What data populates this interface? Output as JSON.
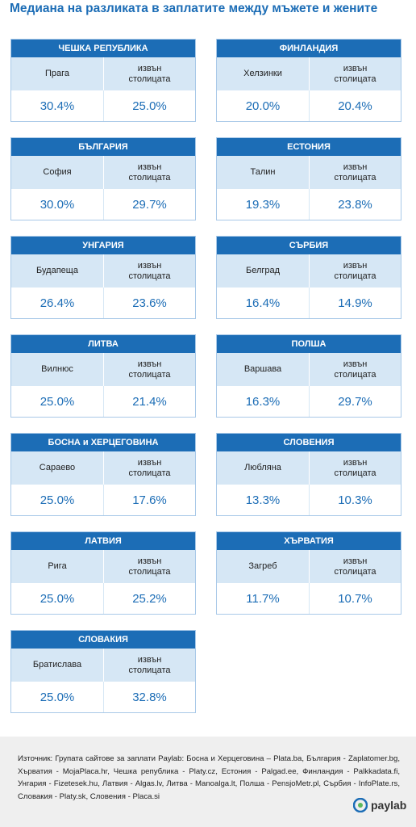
{
  "header": {
    "title": "Медиана на разликата в заплатите между мъжете и жените"
  },
  "cards": [
    {
      "country": "ЧЕШКА РЕПУБЛИКА",
      "capital": "Прага",
      "outside": "извън столицата",
      "capital_value": "30.4%",
      "outside_value": "25.0%"
    },
    {
      "country": "ФИНЛАНДИЯ",
      "capital": "Хелзинки",
      "outside": "извън столицата",
      "capital_value": "20.0%",
      "outside_value": "20.4%"
    },
    {
      "country": "БЪЛГАРИЯ",
      "capital": "София",
      "outside": "извън столицата",
      "capital_value": "30.0%",
      "outside_value": "29.7%"
    },
    {
      "country": "ЕСТОНИЯ",
      "capital": "Талин",
      "outside": "извън столицата",
      "capital_value": "19.3%",
      "outside_value": "23.8%"
    },
    {
      "country": "УНГАРИЯ",
      "capital": "Будапеща",
      "outside": "извън столицата",
      "capital_value": "26.4%",
      "outside_value": "23.6%"
    },
    {
      "country": "СЪРБИЯ",
      "capital": "Белград",
      "outside": "извън столицата",
      "capital_value": "16.4%",
      "outside_value": "14.9%"
    },
    {
      "country": "ЛИТВА",
      "capital": "Вилнюс",
      "outside": "извън столицата",
      "capital_value": "25.0%",
      "outside_value": "21.4%"
    },
    {
      "country": "ПОЛША",
      "capital": "Варшава",
      "outside": "извън столицата",
      "capital_value": "16.3%",
      "outside_value": "29.7%"
    },
    {
      "country": "БОСНА и ХЕРЦЕГОВИНА",
      "capital": "Сараево",
      "outside": "извън столицата",
      "capital_value": "25.0%",
      "outside_value": "17.6%"
    },
    {
      "country": "СЛОВЕНИЯ",
      "capital": "Любляна",
      "outside": "извън столицата",
      "capital_value": "13.3%",
      "outside_value": "10.3%"
    },
    {
      "country": "ЛАТВИЯ",
      "capital": "Рига",
      "outside": "извън столицата",
      "capital_value": "25.0%",
      "outside_value": "25.2%"
    },
    {
      "country": "ХЪРВАТИЯ",
      "capital": "Загреб",
      "outside": "извън столицата",
      "capital_value": "11.7%",
      "outside_value": "10.7%"
    },
    {
      "country": "СЛОВАКИЯ",
      "capital": "Братислава",
      "outside": "извън столицата",
      "capital_value": "25.0%",
      "outside_value": "32.8%"
    }
  ],
  "footer": {
    "source": "Източник: Групата сайтове за заплати Paylab: Босна и Херцеговина – Plata.ba, България - Zaplatomer.bg, Хърватия - MojaPlaca.hr, Чешка република - Platy.cz, Естония - Palgad.ee, Финландия - Palkkadata.fi, Унгария - Fizetesek.hu, Латвия - Algas.lv, Литва - Manoalga.lt, Полша - PensjoMetr.pl, Сърбия - InfoPlate.rs, Словакия - Platy.sk, Словения - Placa.si",
    "logo": "paylab"
  }
}
